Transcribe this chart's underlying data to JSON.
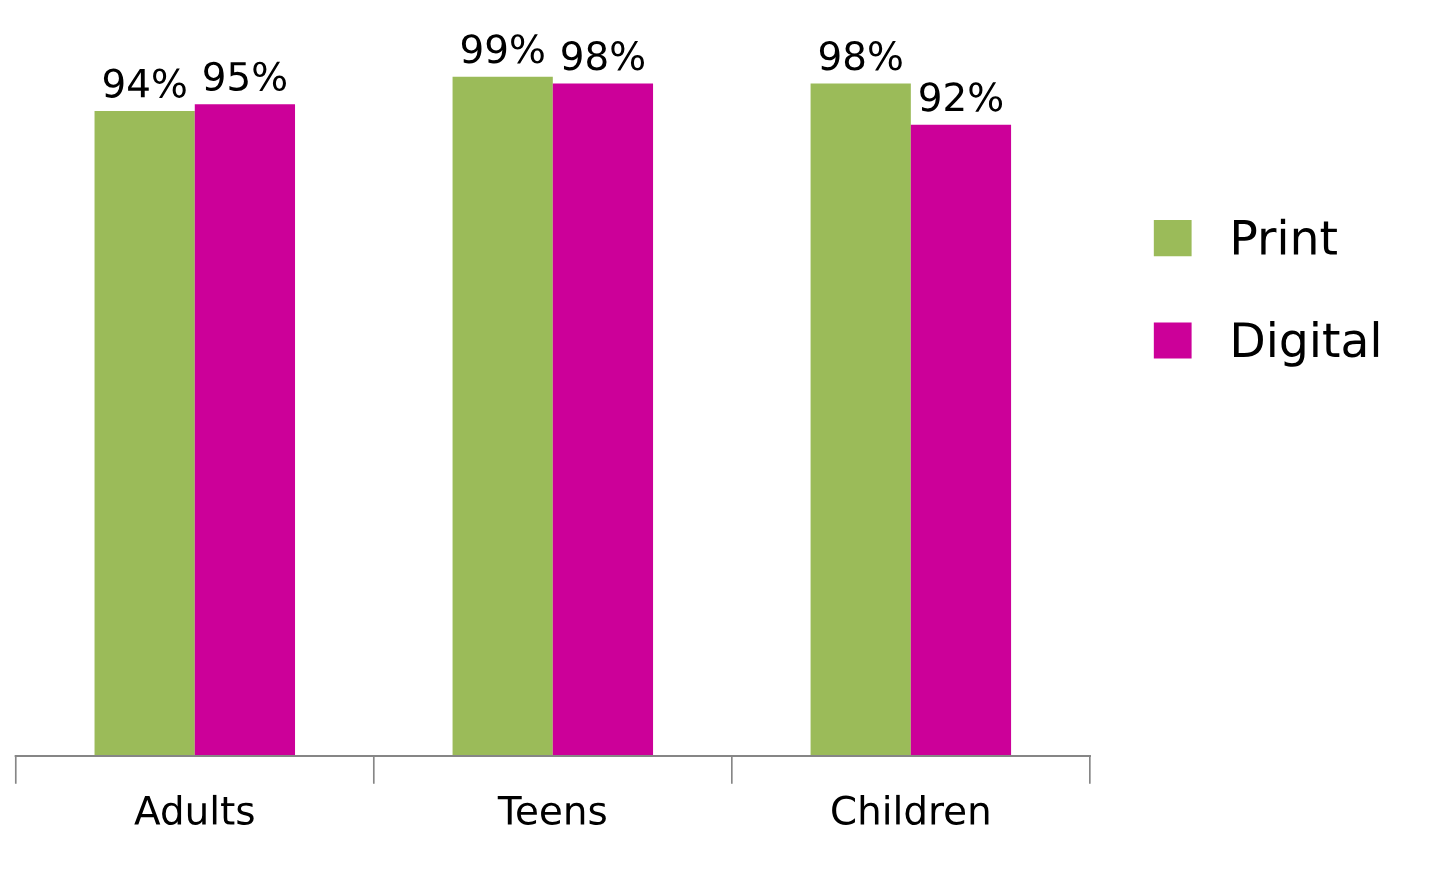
{
  "chart_data": {
    "type": "bar",
    "categories": [
      "Adults",
      "Teens",
      "Children"
    ],
    "series": [
      {
        "name": "Print",
        "color": "#9bbb59",
        "values": [
          94,
          99,
          98
        ],
        "value_labels": [
          "94%",
          "99%",
          "98%"
        ]
      },
      {
        "name": "Digital",
        "color": "#cc0099",
        "values": [
          95,
          98,
          92
        ],
        "value_labels": [
          "95%",
          "98%",
          "92%"
        ]
      }
    ],
    "legend": "right",
    "grid": false,
    "tick_labels": "x"
  }
}
